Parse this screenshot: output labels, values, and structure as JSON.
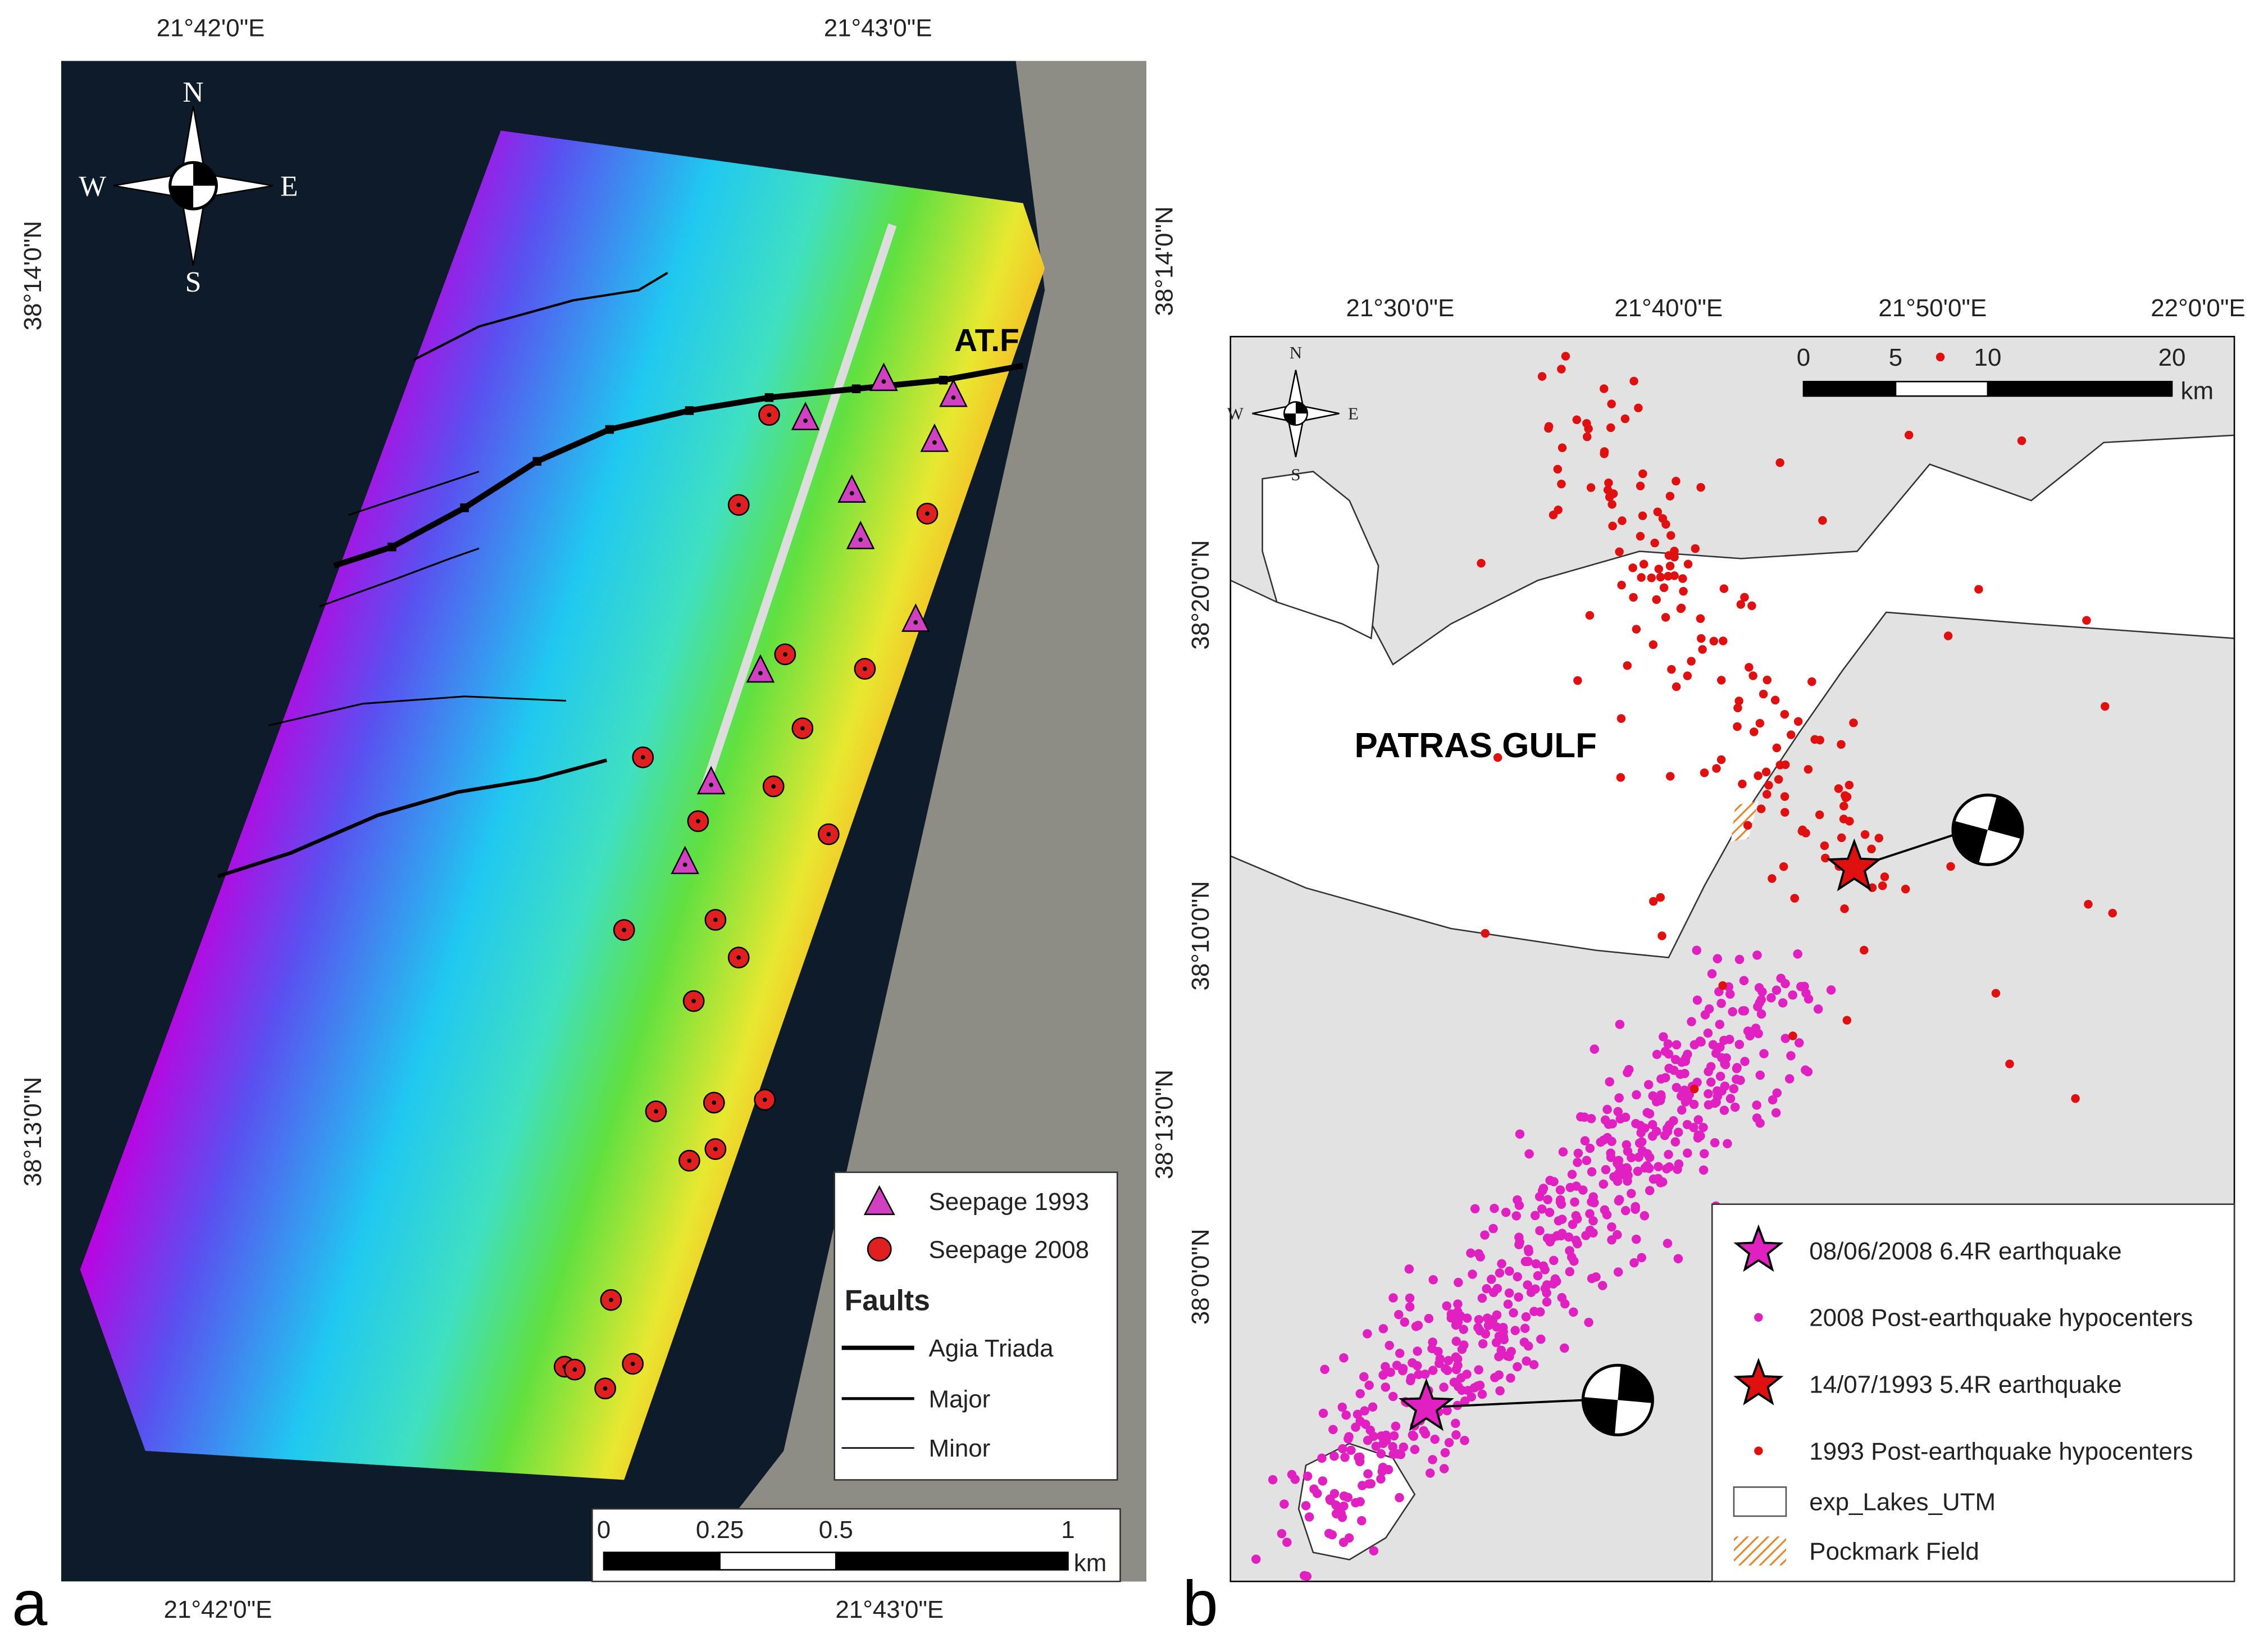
{
  "panel_a": {
    "label": "a",
    "lon_labels_top": [
      "21°42'0\"E",
      "21°43'0\"E"
    ],
    "lon_labels_bottom": [
      "21°42'0\"E",
      "21°43'0\"E"
    ],
    "lat_labels_left": [
      "38°14'0\"N",
      "38°13'0\"N"
    ],
    "lat_labels_right": [
      "38°14'0\"N",
      "38°13'0\"N"
    ],
    "compass": [
      "N",
      "E",
      "S",
      "W"
    ],
    "fault_label": "AT.F",
    "legend": {
      "seepage": [
        "Seepage 1993",
        "Seepage 2008"
      ],
      "faults_title": "Faults",
      "faults": [
        "Agia Triada",
        "Major",
        "Minor"
      ]
    },
    "scale": {
      "ticks": [
        0,
        0.25,
        0.5,
        1
      ],
      "unit": "km"
    }
  },
  "panel_b": {
    "label": "b",
    "lon_labels": [
      "21°30'0\"E",
      "21°40'0\"E",
      "21°50'0\"E",
      "22°0'0\"E"
    ],
    "lat_labels": [
      "38°20'0\"N",
      "38°10'0\"N",
      "38°0'0\"N"
    ],
    "compass": [
      "N",
      "E",
      "S",
      "W"
    ],
    "place_label": "PATRAS GULF",
    "scale": {
      "ticks": [
        0,
        5,
        10,
        20
      ],
      "unit": "km"
    },
    "legend": [
      "08/06/2008 6.4R earthquake",
      "2008 Post-earthquake hypocenters",
      "14/07/1993 5.4R earthquake",
      "1993 Post-earthquake hypocenters",
      "exp_Lakes_UTM",
      "Pockmark Field"
    ]
  }
}
